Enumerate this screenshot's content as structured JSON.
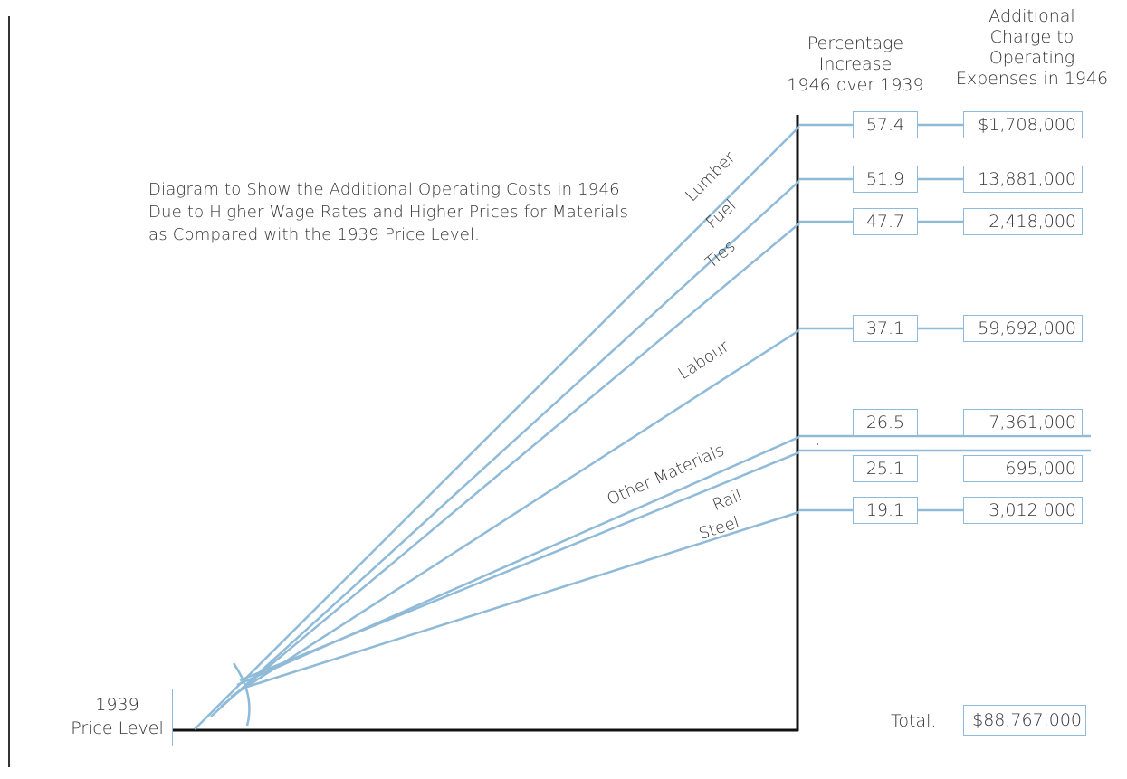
{
  "title_lines": [
    "Diagram to Show the Additional Operating Costs in 1946",
    "Due to Higher Wage Rates and Higher Prices for Materials",
    "as Compared with the 1939 Price Level."
  ],
  "headers": {
    "percentage": [
      "Percentage",
      "Increase",
      "1946 over 1939"
    ],
    "charge": [
      "Additional",
      "Charge to",
      "Operating",
      "Expenses in 1946"
    ]
  },
  "base_label": [
    "1939",
    "Price Level"
  ],
  "rows": [
    {
      "label": "Lumber",
      "percent": "57.4",
      "charge": "$1,708,000"
    },
    {
      "label": "Fuel",
      "percent": "51.9",
      "charge": "13,881,000"
    },
    {
      "label": "Ties",
      "percent": "47.7",
      "charge": "2,418,000"
    },
    {
      "label": "Labour",
      "percent": "37.1",
      "charge": "59,692,000"
    },
    {
      "label": "Other Materials",
      "percent": "26.5",
      "charge": "7,361,000"
    },
    {
      "label": "Rail",
      "percent": "25.1",
      "charge": "695,000"
    },
    {
      "label": "Steel",
      "percent": "19.1",
      "charge": "3,012 000"
    }
  ],
  "total": {
    "label": "Total.",
    "value": "$88,767,000"
  },
  "colors": {
    "line": "#8fbad8",
    "axis": "#111111",
    "text": "#333333"
  }
}
